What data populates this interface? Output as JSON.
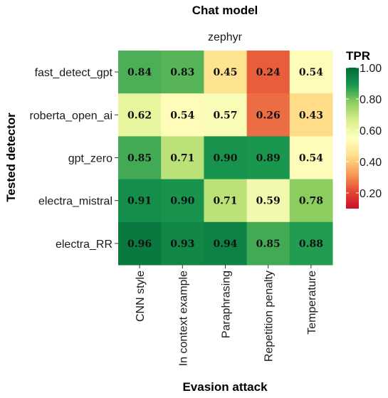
{
  "chart_data": {
    "type": "heatmap",
    "title": "Chat model",
    "subtitle": "zephyr",
    "xlabel": "Evasion attack",
    "ylabel": "Tested detector",
    "x_categories": [
      "CNN style",
      "In context example",
      "Paraphrasing",
      "Repetition penalty",
      "Temperature"
    ],
    "y_categories": [
      "fast_detect_gpt",
      "roberta_open_ai",
      "gpt_zero",
      "electra_mistral",
      "electra_RR"
    ],
    "values": [
      [
        0.84,
        0.83,
        0.45,
        0.24,
        0.54
      ],
      [
        0.62,
        0.54,
        0.57,
        0.26,
        0.43
      ],
      [
        0.85,
        0.71,
        0.9,
        0.89,
        0.54
      ],
      [
        0.91,
        0.9,
        0.71,
        0.59,
        0.78
      ],
      [
        0.96,
        0.93,
        0.94,
        0.85,
        0.88
      ]
    ],
    "value_labels": [
      [
        "0.84",
        "0.83",
        "0.45",
        "0.24",
        "0.54"
      ],
      [
        "0.62",
        "0.54",
        "0.57",
        "0.26",
        "0.43"
      ],
      [
        "0.85",
        "0.71",
        "0.90",
        "0.89",
        "0.54"
      ],
      [
        "0.91",
        "0.90",
        "0.71",
        "0.59",
        "0.78"
      ],
      [
        "0.96",
        "0.93",
        "0.94",
        "0.85",
        "0.88"
      ]
    ],
    "legend": {
      "title": "TPR",
      "position": "right",
      "range": [
        0.1,
        1.0
      ],
      "ticks": [
        1.0,
        0.8,
        0.6,
        0.4,
        0.2
      ],
      "tick_labels": [
        "1.00",
        "0.80",
        "0.60",
        "0.40",
        "0.20"
      ],
      "colors": [
        "#c9112a",
        "#e34a33",
        "#f99d59",
        "#fee08b",
        "#ffffbf",
        "#d9ef8b",
        "#91cf60",
        "#1a9850",
        "#006837"
      ]
    },
    "grid": false
  }
}
